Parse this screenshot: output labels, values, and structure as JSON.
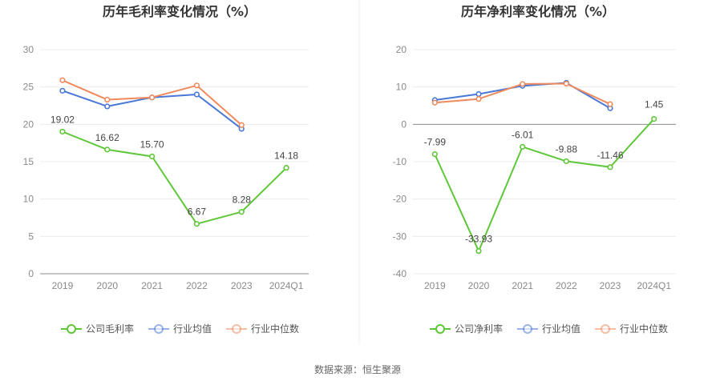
{
  "source_text": "数据来源：恒生聚源",
  "chart_data": [
    {
      "type": "line",
      "title": "历年毛利率变化情况（%）",
      "categories": [
        "2019",
        "2020",
        "2021",
        "2022",
        "2023",
        "2024Q1"
      ],
      "ylim": [
        0,
        30
      ],
      "yticks": [
        0,
        5,
        10,
        15,
        20,
        25,
        30
      ],
      "grid": true,
      "legend_position": "bottom",
      "series": [
        {
          "name": "公司毛利率",
          "color": "#5ec737",
          "values": [
            19.02,
            16.62,
            15.7,
            6.67,
            8.28,
            14.18
          ],
          "labels": [
            "19.02",
            "16.62",
            "15.70",
            "6.67",
            "8.28",
            "14.18"
          ]
        },
        {
          "name": "行业均值",
          "color": "#4a78d6",
          "values": [
            24.5,
            22.4,
            23.6,
            24.0,
            19.4,
            null
          ]
        },
        {
          "name": "行业中位数",
          "color": "#f08a5d",
          "values": [
            25.9,
            23.3,
            23.6,
            25.2,
            19.9,
            null
          ]
        }
      ]
    },
    {
      "type": "line",
      "title": "历年净利率变化情况（%）",
      "categories": [
        "2019",
        "2020",
        "2021",
        "2022",
        "2023",
        "2024Q1"
      ],
      "ylim": [
        -40,
        20
      ],
      "yticks": [
        -40,
        -30,
        -20,
        -10,
        0,
        10,
        20
      ],
      "grid": true,
      "legend_position": "bottom",
      "series": [
        {
          "name": "公司净利率",
          "color": "#5ec737",
          "values": [
            -7.99,
            -33.93,
            -6.01,
            -9.88,
            -11.46,
            1.45
          ],
          "labels": [
            "-7.99",
            "-33.93",
            "-6.01",
            "-9.88",
            "-11.46",
            "1.45"
          ]
        },
        {
          "name": "行业均值",
          "color": "#4a78d6",
          "values": [
            6.5,
            8.1,
            10.3,
            11.1,
            4.3,
            null
          ]
        },
        {
          "name": "行业中位数",
          "color": "#f08a5d",
          "values": [
            5.8,
            6.8,
            10.8,
            10.9,
            5.4,
            null
          ]
        }
      ]
    }
  ]
}
